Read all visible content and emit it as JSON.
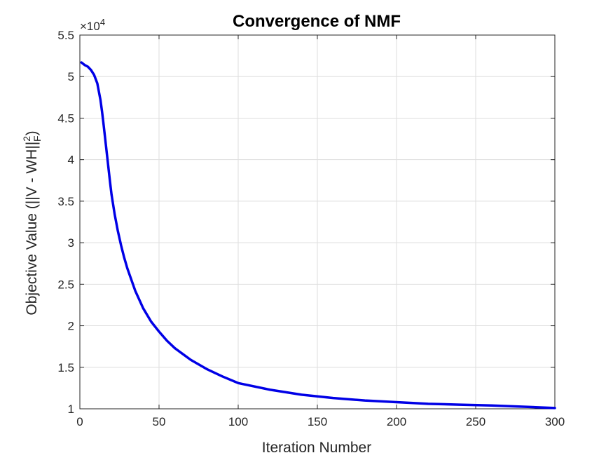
{
  "chart_data": {
    "type": "line",
    "title": "Convergence of NMF",
    "xlabel": "Iteration Number",
    "ylabel_main": "Objective Value (||V - WH||",
    "ylabel_sub": "F",
    "ylabel_sup": "2",
    "ylabel_close": ")",
    "y_multiplier_base": "×10",
    "y_multiplier_exp": "4",
    "xlim": [
      0,
      300
    ],
    "ylim": [
      1,
      5.5
    ],
    "xticks": [
      0,
      50,
      100,
      150,
      200,
      250,
      300
    ],
    "xtick_labels": [
      "0",
      "50",
      "100",
      "150",
      "200",
      "250",
      "300"
    ],
    "yticks": [
      1,
      1.5,
      2,
      2.5,
      3,
      3.5,
      4,
      4.5,
      5,
      5.5
    ],
    "ytick_labels": [
      "1",
      "1.5",
      "2",
      "2.5",
      "3",
      "3.5",
      "4",
      "4.5",
      "5",
      "5.5"
    ],
    "grid": true,
    "series": [
      {
        "color": "#0000e6",
        "x": [
          1,
          3,
          5,
          7,
          9,
          11,
          13,
          14,
          15,
          16,
          17,
          18,
          19,
          20,
          22,
          24,
          26,
          28,
          30,
          35,
          40,
          45,
          50,
          55,
          60,
          70,
          80,
          90,
          100,
          120,
          140,
          160,
          180,
          200,
          220,
          240,
          260,
          280,
          300
        ],
        "y": [
          5.17,
          5.14,
          5.12,
          5.08,
          5.02,
          4.92,
          4.72,
          4.58,
          4.42,
          4.25,
          4.08,
          3.91,
          3.74,
          3.58,
          3.34,
          3.14,
          2.97,
          2.82,
          2.69,
          2.42,
          2.21,
          2.05,
          1.93,
          1.82,
          1.73,
          1.59,
          1.48,
          1.39,
          1.31,
          1.23,
          1.17,
          1.13,
          1.1,
          1.08,
          1.06,
          1.05,
          1.04,
          1.025,
          1.01
        ]
      }
    ]
  }
}
